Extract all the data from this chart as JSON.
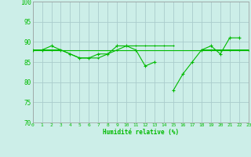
{
  "xlabel": "Humidité relative (%)",
  "background_color": "#cceee8",
  "grid_color": "#aacccc",
  "line_color": "#00bb00",
  "ylim": [
    70,
    100
  ],
  "yticks": [
    70,
    75,
    80,
    85,
    90,
    95,
    100
  ],
  "xlim": [
    0,
    23
  ],
  "xticks": [
    0,
    1,
    2,
    3,
    4,
    5,
    6,
    7,
    8,
    9,
    10,
    11,
    12,
    13,
    14,
    15,
    16,
    17,
    18,
    19,
    20,
    21,
    22,
    23
  ],
  "series1": [
    88,
    88,
    89,
    88,
    87,
    86,
    86,
    87,
    87,
    89,
    89,
    88,
    84,
    85,
    null,
    78,
    82,
    85,
    88,
    89,
    87,
    91,
    91,
    null
  ],
  "series2": [
    88,
    88,
    88,
    88,
    87,
    86,
    86,
    86,
    87,
    88,
    89,
    89,
    89,
    89,
    89,
    89,
    null,
    null,
    88,
    88,
    88,
    88,
    88,
    88
  ],
  "series3": [
    88,
    88,
    88,
    88,
    88,
    88,
    88,
    88,
    88,
    88,
    88,
    88,
    88,
    88,
    88,
    88,
    88,
    88,
    88,
    88,
    88,
    88,
    88,
    88
  ]
}
